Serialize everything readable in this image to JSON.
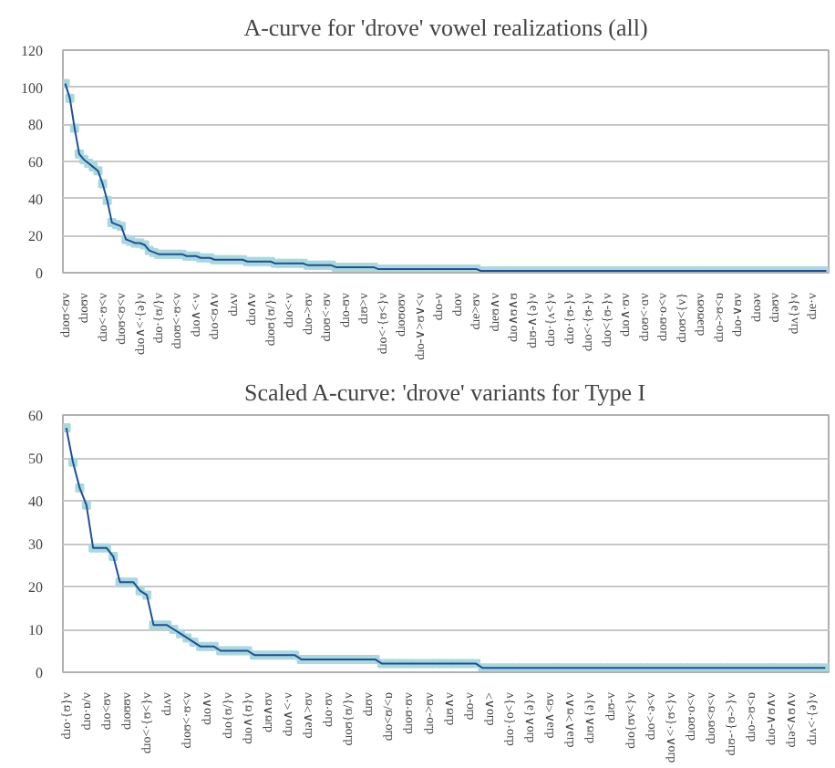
{
  "chart_data": [
    {
      "type": "line",
      "title": "A-curve for 'drove' vowel realizations (all)",
      "marker": "square",
      "line_style": "solid",
      "grid": "y",
      "categories": [
        "dɹoʊ<ʊv",
        null,
        null,
        null,
        "dɹoʊv",
        null,
        null,
        null,
        "dɹo<·ʊ<v",
        null,
        null,
        null,
        "dɹoʊ<ʊ<v",
        null,
        null,
        null,
        "dɹo∧<·{ə}v",
        null,
        null,
        null,
        "dɹo·{ʊ/}v",
        null,
        null,
        null,
        "dɹoʊ<·ʊ<v",
        null,
        null,
        null,
        "dɹo∧<·v",
        null,
        null,
        null,
        "dɹo<ʊ∧v",
        null,
        null,
        null,
        "dɹʌv",
        null,
        null,
        null,
        "dɹo∧v",
        null,
        null,
        null,
        "dɹoʊ{ʊ/}v",
        null,
        null,
        null,
        "dɹo<·v",
        null,
        null,
        null,
        "dɹo->ʊv",
        null,
        null,
        null,
        "dɹoʊ<·ʊv",
        null,
        null,
        null,
        "dɹo-ʊv",
        null,
        null,
        null,
        "dɹʊ>v",
        null,
        null,
        null,
        "dɹo<·{ʊ<}v",
        null,
        null,
        null,
        "dɹoʊoʊv",
        null,
        null,
        null,
        "dɹo-∨>ʊ∨<v",
        null,
        null,
        null,
        "dɹo-v",
        null,
        null,
        null,
        "dɹov",
        null,
        null,
        null,
        "dɹe>ʊv",
        null,
        null,
        null,
        "dɹeʊ∧v",
        null,
        null,
        null,
        "dɹo∧ʊ∧ʊ",
        null,
        null,
        null,
        "dɹʊ-∧{ə}v",
        null,
        null,
        null,
        "dɹo·{ʌ<}v",
        null,
        null,
        null,
        "dɹo·{ʊ-}v",
        null,
        null,
        null,
        "dɹo<·{ʊ-}v",
        null,
        null,
        null,
        "dɹo<{ʊ-}v",
        null,
        null,
        null,
        "dɹo∧·ʊv",
        null,
        null,
        null,
        "dɹoʊ<·ɑv",
        null,
        null,
        null,
        "dɹoʊ·o<v",
        null,
        null,
        null,
        "dɹoʊ<{v}",
        null,
        null,
        null,
        "dɹəʊoʊv",
        null,
        null,
        null,
        "dɹo->ʊ<ɒ",
        null,
        null,
        null,
        "dɹo-∨ʊv",
        null,
        null,
        null,
        "dɹoəv",
        null,
        null,
        null,
        "dɹəʊv",
        null,
        null,
        null,
        "dɹʌ{ə}v",
        null,
        null,
        null,
        "dɹe·v",
        null,
        null,
        null
      ],
      "series": [
        {
          "color": "#a9d9dc",
          "values": [
            102,
            94,
            78,
            64,
            61,
            59,
            57,
            55,
            48,
            39,
            27,
            26,
            25,
            18,
            17,
            16,
            16,
            15,
            12,
            11,
            10,
            10,
            10,
            10,
            10,
            10,
            9,
            9,
            9,
            8,
            8,
            8,
            7,
            7,
            7,
            7,
            7,
            7,
            7,
            6,
            6,
            6,
            6,
            6,
            6,
            5,
            5,
            5,
            5,
            5,
            5,
            5,
            4,
            4,
            4,
            4,
            4,
            4,
            3,
            3,
            3,
            3,
            3,
            3,
            3,
            3,
            3,
            2,
            2,
            2,
            2,
            2,
            2,
            2,
            2,
            2,
            2,
            2,
            2,
            2,
            2,
            2,
            2,
            2,
            2,
            2,
            2,
            2,
            2,
            1,
            1,
            1,
            1,
            1,
            1,
            1,
            1,
            1,
            1,
            1,
            1,
            1,
            1,
            1,
            1,
            1,
            1,
            1,
            1,
            1,
            1,
            1,
            1,
            1,
            1,
            1,
            1,
            1,
            1,
            1,
            1,
            1,
            1,
            1,
            1,
            1,
            1,
            1,
            1,
            1,
            1,
            1,
            1,
            1,
            1,
            1,
            1,
            1,
            1,
            1,
            1,
            1,
            1,
            1,
            1,
            1,
            1,
            1,
            1,
            1,
            1,
            1,
            1,
            1,
            1,
            1,
            1,
            1,
            1,
            1,
            1,
            1,
            1,
            1
          ]
        }
      ],
      "ylim": [
        0,
        120
      ],
      "yticks": [
        0,
        20,
        40,
        60,
        80,
        100,
        120
      ]
    },
    {
      "type": "line",
      "title": "Scaled A-curve: 'drove' variants for Type I",
      "marker": "square",
      "line_style": "solid",
      "grid": "y",
      "categories": [
        "dɹo·{ʊ}v",
        null,
        null,
        "dɹo·ɒ/v",
        null,
        null,
        "dɹo<ʊv",
        null,
        null,
        "dɹoʊʊv",
        null,
        null,
        "dɹo<·{ʊ<}v",
        null,
        null,
        "dɹʌv",
        null,
        null,
        "dɹoʊ<·ʊ<v",
        null,
        null,
        "dɹo∧v",
        null,
        null,
        "dɹo{ʊ/}v",
        null,
        null,
        "dɹo∧{ʊ}v",
        null,
        null,
        "dɹʊ∧ʊv",
        null,
        null,
        "dɹo∧<·v",
        null,
        null,
        "dɹə∧>ʊv",
        null,
        null,
        "dɹo·ʊv",
        null,
        null,
        "dɹoʊ{ʊ/}v",
        null,
        null,
        "dɹʊv",
        null,
        null,
        "dɹo<ʊ/<ɒ",
        null,
        null,
        "dɹoʊ·ʊv",
        null,
        null,
        "dɹo->ʊv",
        null,
        null,
        "dɹʊ∧v",
        null,
        null,
        "dɹo-v",
        null,
        null,
        "dɹo∧>",
        null,
        null,
        "dɹo·{o<}v",
        null,
        null,
        "dɹo∧{ə}v",
        null,
        null,
        "dɹə∧<ʊv",
        null,
        null,
        "dɹə∧>ʊ∧v",
        null,
        null,
        "dɹʊ∧{ə}v",
        null,
        null,
        "dɹʊ-v",
        null,
        null,
        "dɹo{ʊv<}v",
        null,
        null,
        "dɹo<·ə<v",
        null,
        null,
        "dɹo∧<·{ʊ<}v",
        null,
        null,
        "dɹoʊ·o<v",
        null,
        null,
        "dɹoʊ<ʊ<v",
        null,
        null,
        "dɹʊ-·{ʊ->}v",
        null,
        null,
        "dɹo->ʊ<ɒ",
        null,
        null,
        "dɹo-∨ʊ∧v",
        null,
        null,
        "dɹə<∧ʊ∧v",
        null,
        null,
        "dɹʌ<·{ə}v",
        null,
        null
      ],
      "series": [
        {
          "color": "#a9d9dc",
          "values": [
            57,
            49,
            43,
            39,
            29,
            29,
            29,
            27,
            21,
            21,
            21,
            19,
            18,
            11,
            11,
            11,
            10,
            9,
            8,
            7,
            6,
            6,
            6,
            5,
            5,
            5,
            5,
            5,
            4,
            4,
            4,
            4,
            4,
            4,
            4,
            3,
            3,
            3,
            3,
            3,
            3,
            3,
            3,
            3,
            3,
            3,
            3,
            2,
            2,
            2,
            2,
            2,
            2,
            2,
            2,
            2,
            2,
            2,
            2,
            2,
            2,
            2,
            1,
            1,
            1,
            1,
            1,
            1,
            1,
            1,
            1,
            1,
            1,
            1,
            1,
            1,
            1,
            1,
            1,
            1,
            1,
            1,
            1,
            1,
            1,
            1,
            1,
            1,
            1,
            1,
            1,
            1,
            1,
            1,
            1,
            1,
            1,
            1,
            1,
            1,
            1,
            1,
            1,
            1,
            1,
            1,
            1,
            1,
            1,
            1,
            1,
            1,
            1,
            1
          ]
        }
      ],
      "ylim": [
        0,
        60
      ],
      "yticks": [
        0,
        10,
        20,
        30,
        40,
        50,
        60
      ]
    }
  ]
}
